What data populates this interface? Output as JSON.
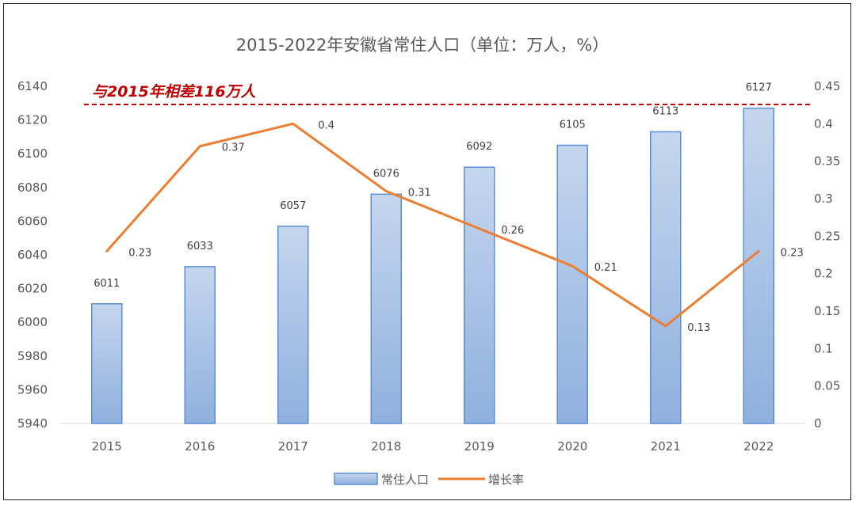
{
  "chart_data": {
    "type": "bar",
    "title": "2015-2022年安徽省常住人口（单位：万人，%）",
    "categories": [
      "2015",
      "2016",
      "2017",
      "2018",
      "2019",
      "2020",
      "2021",
      "2022"
    ],
    "series": [
      {
        "name": "常住人口",
        "type": "bar",
        "axis": "left",
        "values": [
          6011,
          6033,
          6057,
          6076,
          6092,
          6105,
          6113,
          6127
        ]
      },
      {
        "name": "增长率",
        "type": "line",
        "axis": "right",
        "values": [
          0.23,
          0.37,
          0.4,
          0.31,
          0.26,
          0.21,
          0.13,
          0.23
        ]
      }
    ],
    "y_left": {
      "min": 5940,
      "max": 6140,
      "ticks": [
        "5940",
        "5960",
        "5980",
        "6000",
        "6020",
        "6040",
        "6060",
        "6080",
        "6100",
        "6120",
        "6140"
      ]
    },
    "y_right": {
      "min": 0,
      "max": 0.45,
      "ticks": [
        "0",
        "0.05",
        "0.1",
        "0.15",
        "0.2",
        "0.25",
        "0.3",
        "0.35",
        "0.4",
        "0.45"
      ]
    },
    "reference_line": {
      "value": 6127,
      "text": "与2015年相差116万人",
      "color": "#c00000"
    },
    "colors": {
      "bar_fill_top": "#c5d6ee",
      "bar_fill_bottom": "#8fb0de",
      "bar_stroke": "#5b8ed4",
      "line": "#ed7d31"
    },
    "grid": false,
    "legend_position": "bottom"
  }
}
